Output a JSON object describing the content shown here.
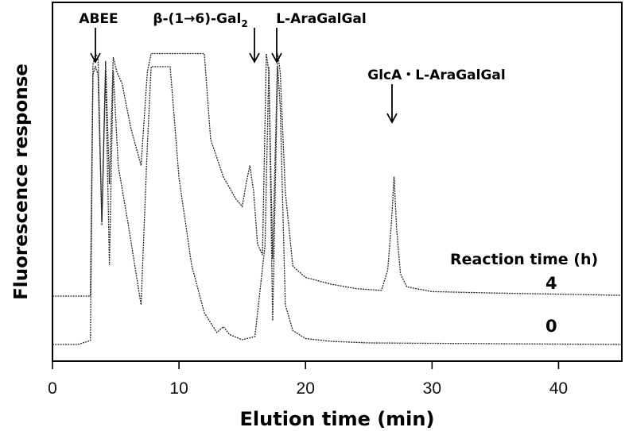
{
  "chart_data": {
    "type": "line",
    "xlabel": "Elution time (min)",
    "ylabel": "Fluorescence response",
    "xlim": [
      0,
      45
    ],
    "xticks": [
      0,
      10,
      20,
      30,
      40
    ],
    "tick_labels": [
      "0",
      "10",
      "20",
      "30",
      "40"
    ],
    "legend_title": "Reaction time (h)",
    "annotations": [
      {
        "label": "ABEE",
        "x": 3.5
      },
      {
        "label": "β-(1→6)-Gal",
        "subscript": "2",
        "x": 16.2
      },
      {
        "label": "L-AraGalGal",
        "x": 17.6
      },
      {
        "label": "GlcA・L-AraGalGal",
        "x": 27.0
      }
    ],
    "series": [
      {
        "name": "4",
        "x": [
          0,
          3.0,
          3.2,
          3.4,
          3.6,
          3.9,
          4.2,
          4.5,
          4.8,
          5.1,
          5.5,
          6.2,
          7.0,
          7.5,
          7.8,
          9.3,
          10.5,
          11.5,
          12.0,
          12.5,
          13.5,
          14.5,
          15.0,
          15.3,
          15.6,
          15.9,
          16.2,
          16.6,
          16.9,
          17.1,
          17.4,
          17.8,
          18.0,
          18.4,
          19.0,
          20.0,
          22.0,
          24.0,
          26.0,
          26.5,
          26.8,
          27.0,
          27.2,
          27.5,
          28.0,
          30.0,
          35.0,
          40.0,
          45.0
        ],
        "y": [
          0,
          0,
          620,
          650,
          640,
          200,
          630,
          300,
          640,
          600,
          570,
          450,
          350,
          600,
          650,
          650,
          650,
          650,
          650,
          420,
          320,
          260,
          240,
          300,
          350,
          280,
          140,
          110,
          650,
          600,
          100,
          650,
          600,
          280,
          80,
          50,
          32,
          20,
          15,
          70,
          200,
          320,
          180,
          60,
          25,
          12,
          8,
          5,
          2
        ]
      },
      {
        "name": "0",
        "x": [
          0,
          2.0,
          3.0,
          3.2,
          3.4,
          3.6,
          3.9,
          4.2,
          4.5,
          4.8,
          5.2,
          6.0,
          7.0,
          7.5,
          7.8,
          9.3,
          10.0,
          11.0,
          12.0,
          13.0,
          13.5,
          14.0,
          15.0,
          16.0,
          16.8,
          17.1,
          17.4,
          17.8,
          18.0,
          18.4,
          19.0,
          20.0,
          22.0,
          25.0,
          30.0,
          35.0,
          40.0,
          45.0
        ],
        "y": [
          0,
          0,
          10,
          680,
          700,
          680,
          300,
          690,
          200,
          690,
          450,
          300,
          100,
          500,
          700,
          700,
          420,
          200,
          80,
          30,
          45,
          25,
          12,
          20,
          250,
          700,
          60,
          700,
          600,
          100,
          35,
          15,
          8,
          4,
          3,
          2,
          1,
          0
        ]
      }
    ]
  }
}
